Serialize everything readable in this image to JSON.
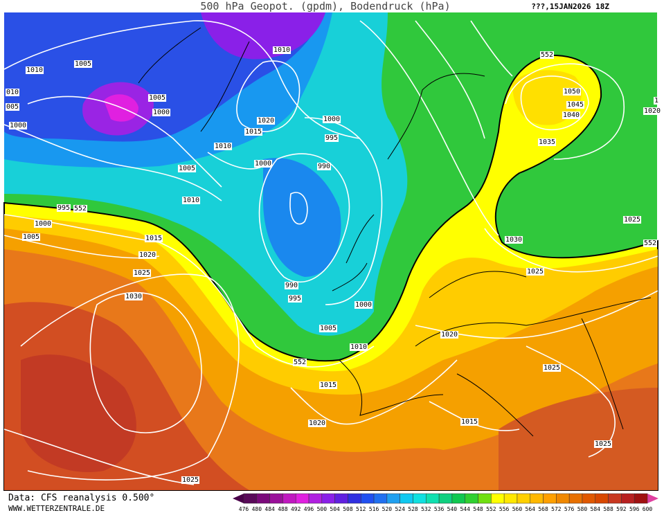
{
  "header": {
    "title": "500 hPa Geopot. (gpdm), Bodendruck (hPa)",
    "run": "???,15JAN2026 18Z"
  },
  "isobar_labels": [
    1010,
    1005,
    1005,
    1000,
    "010",
    "005",
    1000,
    1010,
    1020,
    1015,
    1010,
    1000,
    995,
    1000,
    990,
    1005,
    1010,
    995,
    552,
    1000,
    1005,
    1015,
    1020,
    1025,
    1030,
    990,
    995,
    1000,
    1005,
    1010,
    552,
    1015,
    1020,
    1025,
    1020,
    1015,
    1025,
    1025,
    1025,
    1025,
    1030,
    552,
    552,
    1050,
    1045,
    1040,
    1035,
    1020,
    "1"
  ],
  "legend": {
    "labels": [
      476,
      480,
      484,
      488,
      492,
      496,
      500,
      504,
      508,
      512,
      516,
      520,
      524,
      528,
      532,
      536,
      540,
      544,
      548,
      552,
      556,
      560,
      564,
      568,
      572,
      576,
      580,
      584,
      588,
      592,
      596,
      600
    ],
    "colors": [
      "#5a0a5a",
      "#7a0a7a",
      "#9a109a",
      "#c018c0",
      "#e020e0",
      "#b020e0",
      "#8a20e8",
      "#6020e0",
      "#3030e0",
      "#2050f0",
      "#2070f0",
      "#20a0f0",
      "#10c8f0",
      "#10e0e0",
      "#10e0b0",
      "#10d080",
      "#10c850",
      "#30d030",
      "#70e010",
      "#ffff00",
      "#ffe800",
      "#ffd000",
      "#ffb800",
      "#ffa000",
      "#f08800",
      "#e87000",
      "#e05800",
      "#d84800",
      "#c83820",
      "#b82020",
      "#a01010"
    ],
    "below_color": "#4a004a",
    "above_color": "#e040a0"
  },
  "footer": {
    "source": "Data: CFS reanalysis 0.500°",
    "site": "WWW.WETTERZENTRALE.DE"
  }
}
